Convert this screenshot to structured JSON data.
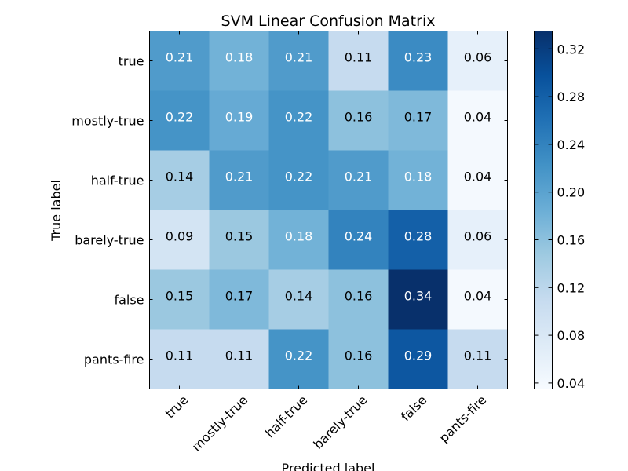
{
  "chart_data": {
    "type": "heatmap",
    "title": "SVM Linear Confusion Matrix",
    "xlabel": "Predicted label",
    "ylabel": "True label",
    "x_categories": [
      "true",
      "mostly-true",
      "half-true",
      "barely-true",
      "false",
      "pants-fire"
    ],
    "y_categories": [
      "true",
      "mostly-true",
      "half-true",
      "barely-true",
      "false",
      "pants-fire"
    ],
    "values": [
      [
        0.21,
        0.18,
        0.21,
        0.11,
        0.23,
        0.06
      ],
      [
        0.22,
        0.19,
        0.22,
        0.16,
        0.17,
        0.04
      ],
      [
        0.14,
        0.21,
        0.22,
        0.21,
        0.18,
        0.04
      ],
      [
        0.09,
        0.15,
        0.18,
        0.24,
        0.28,
        0.06
      ],
      [
        0.15,
        0.17,
        0.14,
        0.16,
        0.34,
        0.04
      ],
      [
        0.11,
        0.11,
        0.22,
        0.16,
        0.29,
        0.11
      ]
    ],
    "value_labels": [
      [
        "0.21",
        "0.18",
        "0.21",
        "0.11",
        "0.23",
        "0.06"
      ],
      [
        "0.22",
        "0.19",
        "0.22",
        "0.16",
        "0.17",
        "0.04"
      ],
      [
        "0.14",
        "0.21",
        "0.22",
        "0.21",
        "0.18",
        "0.04"
      ],
      [
        "0.09",
        "0.15",
        "0.18",
        "0.24",
        "0.28",
        "0.06"
      ],
      [
        "0.15",
        "0.17",
        "0.14",
        "0.16",
        "0.34",
        "0.04"
      ],
      [
        "0.11",
        "0.11",
        "0.22",
        "0.16",
        "0.29",
        "0.11"
      ]
    ],
    "colormap": "Blues",
    "colorbar": {
      "range": [
        0.035,
        0.335
      ],
      "ticks": [
        0.04,
        0.08,
        0.12,
        0.16,
        0.2,
        0.24,
        0.28,
        0.32
      ],
      "tick_labels": [
        "0.04",
        "0.08",
        "0.12",
        "0.16",
        "0.20",
        "0.24",
        "0.28",
        "0.32"
      ]
    },
    "text_threshold": 0.17,
    "text_color_dark": "#000000",
    "text_color_light": "#ffffff",
    "grid": false
  }
}
